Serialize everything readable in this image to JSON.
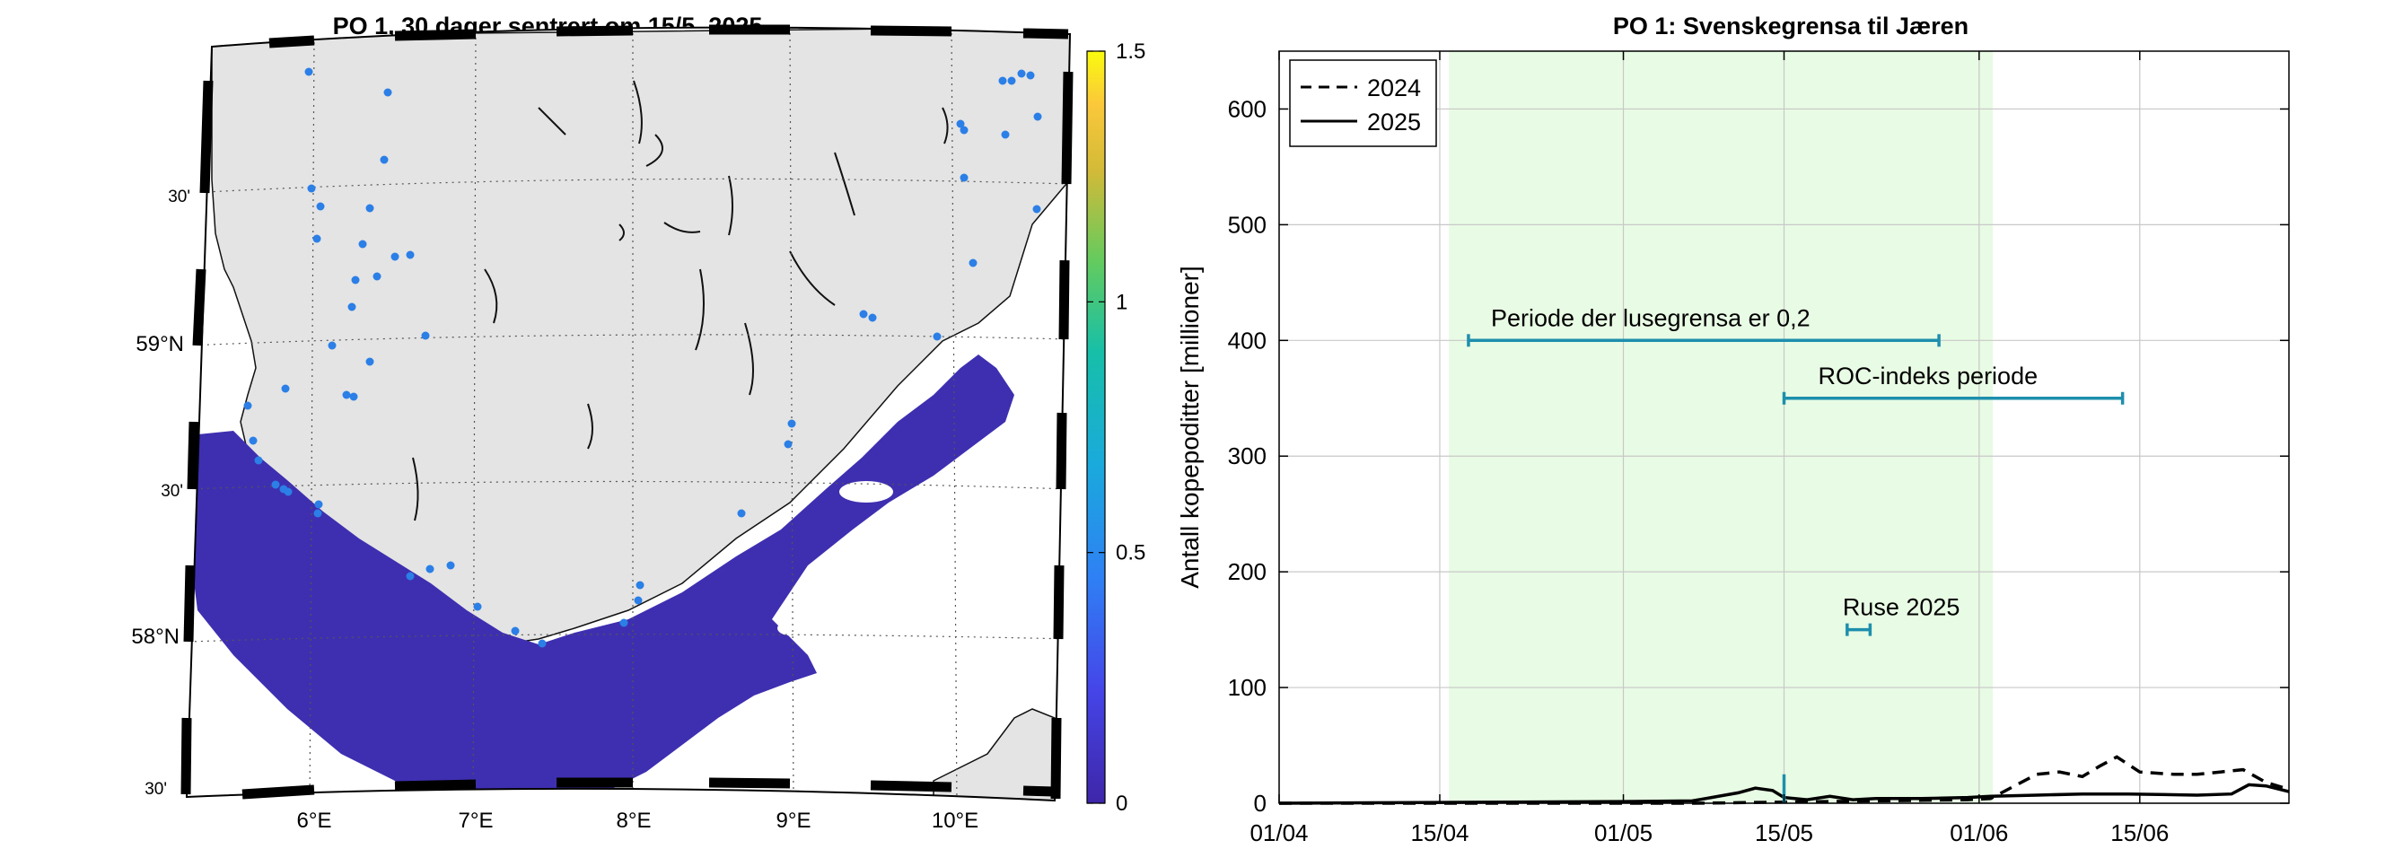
{
  "map": {
    "title": "PO 1, 30 dager sentrert om 15/5, 2025",
    "lon_labels": [
      "6°E",
      "7°E",
      "8°E",
      "9°E",
      "10°E"
    ],
    "lat_labels": [
      "59°N",
      "58°N"
    ],
    "half_degree_labels": [
      "30'",
      "30'",
      "30'"
    ],
    "colors": {
      "land": "#e4e4e4",
      "sea_field": "#3e2fb0",
      "coast": "#111111",
      "stations": "#2b7fe6",
      "frame_dark": "#000000",
      "grid": "#555555"
    }
  },
  "colorbar": {
    "ticks": [
      "0",
      "0.5",
      "1",
      "1.5"
    ],
    "tick_values": [
      0,
      0.5,
      1,
      1.5
    ],
    "range": [
      0,
      1.5
    ]
  },
  "chart_data": {
    "type": "line",
    "title": "PO 1: Svenskegrensa til Jæren",
    "ylabel": "Antall kopepoditter [millioner]",
    "xlabel": "",
    "ylim": [
      0,
      650
    ],
    "yticks": [
      0,
      100,
      200,
      300,
      400,
      500,
      600
    ],
    "ytick_labels": [
      "0",
      "100",
      "200",
      "300",
      "400",
      "500",
      "600"
    ],
    "xlim_days": [
      0,
      88
    ],
    "xticks_days": [
      0,
      14,
      30,
      44,
      61,
      75
    ],
    "xtick_labels": [
      "01/04",
      "15/04",
      "01/05",
      "15/05",
      "01/06",
      "15/06"
    ],
    "grid": true,
    "legend": {
      "position": "top-left",
      "entries": [
        "2024",
        "2025"
      ]
    },
    "shaded_period": {
      "start_day": 14.8,
      "end_day": 62.2,
      "color": "#e8fbe4"
    },
    "annotations": [
      {
        "text": "Periode der lusegrensa er 0,2",
        "x_start": 16.5,
        "x_end": 57.5,
        "y": 400,
        "color": "#1e8fad"
      },
      {
        "text": "ROC-indeks periode",
        "x_start": 44,
        "x_end": 73.5,
        "y": 350,
        "color": "#1e8fad"
      },
      {
        "text": "Ruse 2025",
        "x_start": 49.5,
        "x_end": 51.5,
        "y": 150,
        "color": "#1e8fad"
      }
    ],
    "vertical_marker": {
      "x": 44,
      "y_from": 0,
      "y_to": 25,
      "color": "#1e8fad"
    },
    "series": [
      {
        "name": "2024",
        "style": "dashed",
        "x": [
          0,
          10,
          20,
          30,
          36,
          40,
          44,
          48,
          52,
          56,
          60,
          62,
          66,
          68,
          70,
          71.5,
          73,
          75,
          78,
          80,
          82,
          84,
          86,
          88
        ],
        "values": [
          0,
          0,
          0,
          0,
          0,
          0.5,
          1,
          1.5,
          2,
          2.5,
          3,
          4,
          25,
          27,
          23,
          32,
          40,
          27,
          25,
          25,
          27,
          29,
          18,
          12
        ]
      },
      {
        "name": "2025",
        "style": "solid",
        "x": [
          0,
          10,
          20,
          30,
          36,
          40,
          41.5,
          43,
          44,
          46,
          48,
          50,
          52,
          56,
          60,
          62,
          66,
          70,
          74,
          80,
          83,
          84.5,
          86,
          88
        ],
        "values": [
          0,
          0.5,
          1,
          1.5,
          2,
          9,
          13,
          11,
          5,
          3,
          6,
          3,
          4,
          4,
          5,
          6,
          7,
          8,
          8,
          7,
          8,
          16,
          15,
          10
        ]
      }
    ]
  }
}
